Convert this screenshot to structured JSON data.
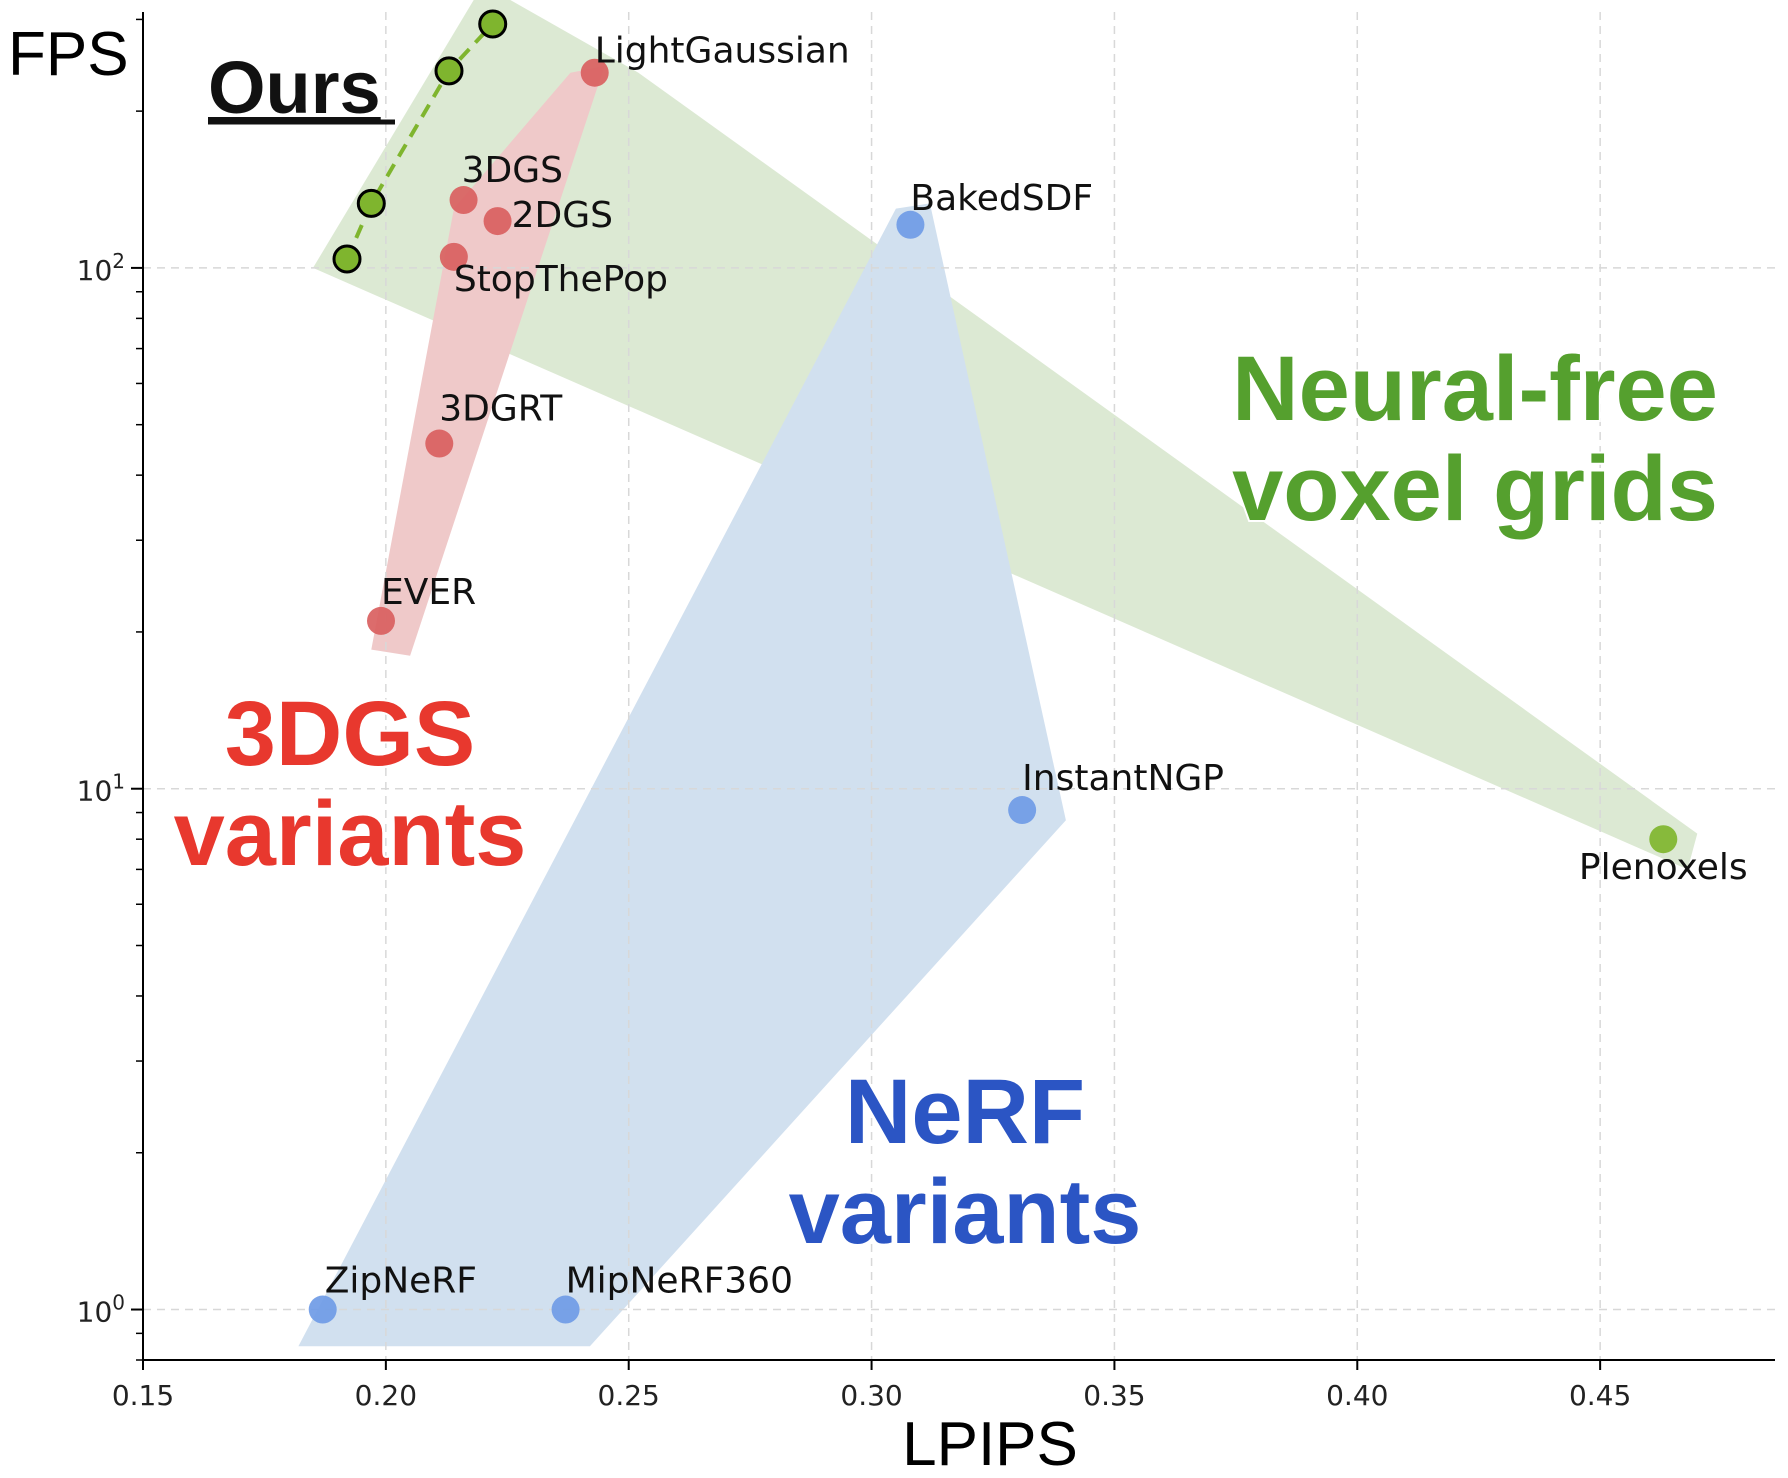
{
  "chart_data": {
    "type": "scatter",
    "xlabel": "LPIPS",
    "ylabel": "FPS",
    "xscale": "linear",
    "yscale": "log",
    "xlim": [
      0.15,
      0.486
    ],
    "ylim": [
      0.8,
      310
    ],
    "grid": true,
    "xticks": [
      {
        "value": 0.15,
        "label": "0.15"
      },
      {
        "value": 0.2,
        "label": "0.20"
      },
      {
        "value": 0.25,
        "label": "0.25"
      },
      {
        "value": 0.3,
        "label": "0.30"
      },
      {
        "value": 0.35,
        "label": "0.35"
      },
      {
        "value": 0.4,
        "label": "0.40"
      },
      {
        "value": 0.45,
        "label": "0.45"
      }
    ],
    "yticks": [
      {
        "value": 1,
        "base": "10",
        "exp": "0"
      },
      {
        "value": 10,
        "base": "10",
        "exp": "1"
      },
      {
        "value": 100,
        "base": "10",
        "exp": "2"
      }
    ],
    "colors": {
      "ours": "#7fb52e",
      "gs": "#d95f5f",
      "nerf": "#6f9be6",
      "voxel": "#7fb52e",
      "green_region": "#dce9d3",
      "red_region": "#efc9c9",
      "blue_region": "#d1e0ef",
      "green_text": "#55a02e",
      "red_text": "#e8382e",
      "blue_text": "#2b55c4"
    },
    "series": [
      {
        "name": "Ours",
        "group": "ours",
        "line": true,
        "points": [
          {
            "x": 0.192,
            "y": 104
          },
          {
            "x": 0.197,
            "y": 133
          },
          {
            "x": 0.213,
            "y": 239
          },
          {
            "x": 0.222,
            "y": 294
          }
        ]
      },
      {
        "name": "3DGS variants",
        "group": "gs",
        "points": [
          {
            "x": 0.243,
            "y": 237,
            "label": "LightGaussian",
            "anchor": "start",
            "dx": 0,
            "dy": -10
          },
          {
            "x": 0.216,
            "y": 135,
            "label": "3DGS",
            "anchor": "start",
            "dx": -2,
            "dy": -18
          },
          {
            "x": 0.223,
            "y": 123,
            "label": "2DGS",
            "anchor": "start",
            "dx": 14,
            "dy": 6
          },
          {
            "x": 0.214,
            "y": 105,
            "label": "StopThePop",
            "anchor": "start",
            "dx": 0,
            "dy": 34
          },
          {
            "x": 0.211,
            "y": 46,
            "label": "3DGRT",
            "anchor": "start",
            "dx": 0,
            "dy": -23
          },
          {
            "x": 0.199,
            "y": 21,
            "label": "EVER",
            "anchor": "start",
            "dx": 0,
            "dy": -17
          }
        ]
      },
      {
        "name": "NeRF variants",
        "group": "nerf",
        "points": [
          {
            "x": 0.308,
            "y": 121,
            "label": "BakedSDF",
            "anchor": "start",
            "dx": 0,
            "dy": -15
          },
          {
            "x": 0.331,
            "y": 9.1,
            "label": "InstantNGP",
            "anchor": "start",
            "dx": 0,
            "dy": -20
          },
          {
            "x": 0.187,
            "y": 1.0,
            "label": "ZipNeRF",
            "anchor": "start",
            "dx": 2,
            "dy": -17
          },
          {
            "x": 0.237,
            "y": 1.0,
            "label": "MipNeRF360",
            "anchor": "start",
            "dx": 0,
            "dy": -17
          }
        ]
      },
      {
        "name": "Neural-free voxel grids",
        "group": "voxel",
        "points": [
          {
            "x": 0.463,
            "y": 8.0,
            "label": "Plenoxels",
            "anchor": "middle",
            "dx": 0,
            "dy": 40
          }
        ]
      }
    ],
    "regions": [
      {
        "group": "green",
        "points": [
          [
            0.185,
            100
          ],
          [
            0.22,
            350
          ],
          [
            0.252,
            237
          ],
          [
            0.47,
            8.2
          ],
          [
            0.468,
            7.0
          ]
        ]
      },
      {
        "group": "red",
        "points": [
          [
            0.197,
            18.5
          ],
          [
            0.214,
            130
          ],
          [
            0.238,
            237
          ],
          [
            0.245,
            244
          ],
          [
            0.205,
            18
          ]
        ]
      },
      {
        "group": "blue",
        "points": [
          [
            0.182,
            0.85
          ],
          [
            0.305,
            130
          ],
          [
            0.312,
            133
          ],
          [
            0.34,
            8.7
          ],
          [
            0.242,
            0.85
          ]
        ]
      }
    ],
    "annotations": [
      {
        "text": "Ours",
        "color_key": "",
        "style": "ours"
      },
      {
        "text": "3DGS",
        "color_key": "red_text",
        "style": "group"
      },
      {
        "text": "variants",
        "color_key": "red_text",
        "style": "group"
      },
      {
        "text": "Neural-free",
        "color_key": "green_text",
        "style": "group"
      },
      {
        "text": "voxel grids",
        "color_key": "green_text",
        "style": "group"
      },
      {
        "text": "NeRF",
        "color_key": "blue_text",
        "style": "group"
      },
      {
        "text": "variants",
        "color_key": "blue_text",
        "style": "group"
      }
    ]
  }
}
